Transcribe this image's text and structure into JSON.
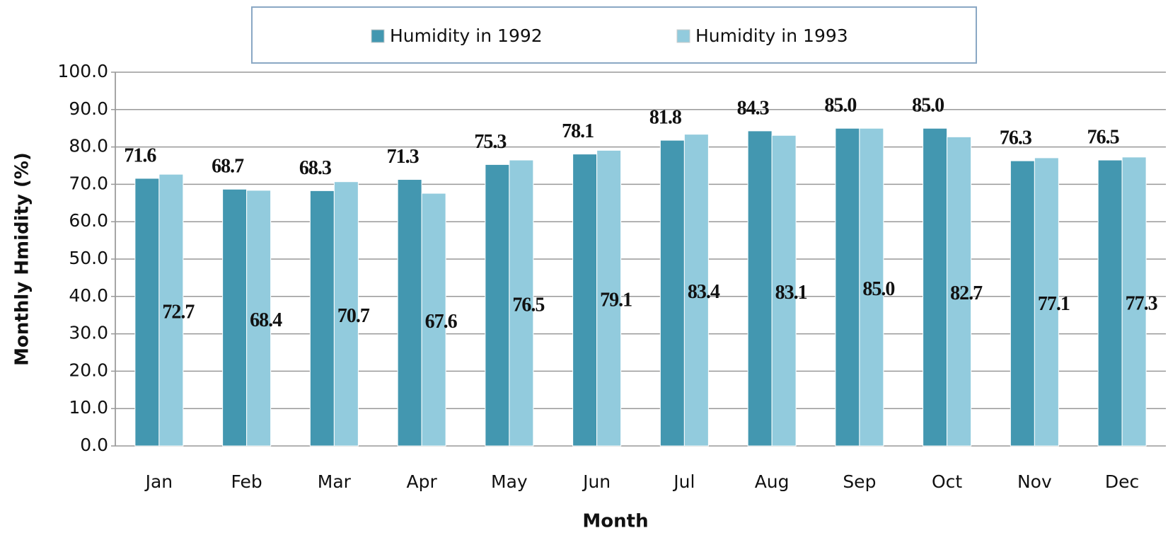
{
  "chart_data": {
    "type": "bar",
    "x_label": "Month",
    "y_label": "Monthly Hmidity (%)",
    "categories": [
      "Jan",
      "Feb",
      "Mar",
      "Apr",
      "May",
      "Jun",
      "Jul",
      "Aug",
      "Sep",
      "Oct",
      "Nov",
      "Dec"
    ],
    "series": [
      {
        "name": "Humidity in 1992",
        "color": "#4397b0",
        "values": [
          71.6,
          68.7,
          68.3,
          71.3,
          75.3,
          78.1,
          81.8,
          84.3,
          85,
          85,
          76.3,
          76.5
        ],
        "value_labels": [
          "71.6",
          "68.7",
          "68.3",
          "71.3",
          "75.3",
          "78.1",
          "81.8",
          "84.3",
          "85.0",
          "85.0",
          "76.3",
          "76.5"
        ]
      },
      {
        "name": "Humidity in 1993",
        "color": "#92cbdd",
        "values": [
          72.7,
          68.4,
          70.7,
          67.6,
          76.5,
          79.1,
          83.4,
          83.1,
          85,
          82.7,
          77.1,
          77.3
        ],
        "value_labels": [
          "72.7",
          "68.4",
          "70.7",
          "67.6",
          "76.5",
          "79.1",
          "83.4",
          "83.1",
          "85.0",
          "82.7",
          "77.1",
          "77.3"
        ]
      }
    ],
    "ylim": [
      0,
      100
    ],
    "yticks": [
      {
        "value": 0,
        "label": "0.0"
      },
      {
        "value": 10,
        "label": "10.0"
      },
      {
        "value": 20,
        "label": "20.0"
      },
      {
        "value": 30,
        "label": "30.0"
      },
      {
        "value": 40,
        "label": "40.0"
      },
      {
        "value": 50,
        "label": "50.0"
      },
      {
        "value": 60,
        "label": "60.0"
      },
      {
        "value": 70,
        "label": "70.0"
      },
      {
        "value": 80,
        "label": "80.0"
      },
      {
        "value": 90,
        "label": "90.0"
      },
      {
        "value": 100,
        "label": "100.0"
      }
    ],
    "grid": true,
    "legend": "top"
  }
}
